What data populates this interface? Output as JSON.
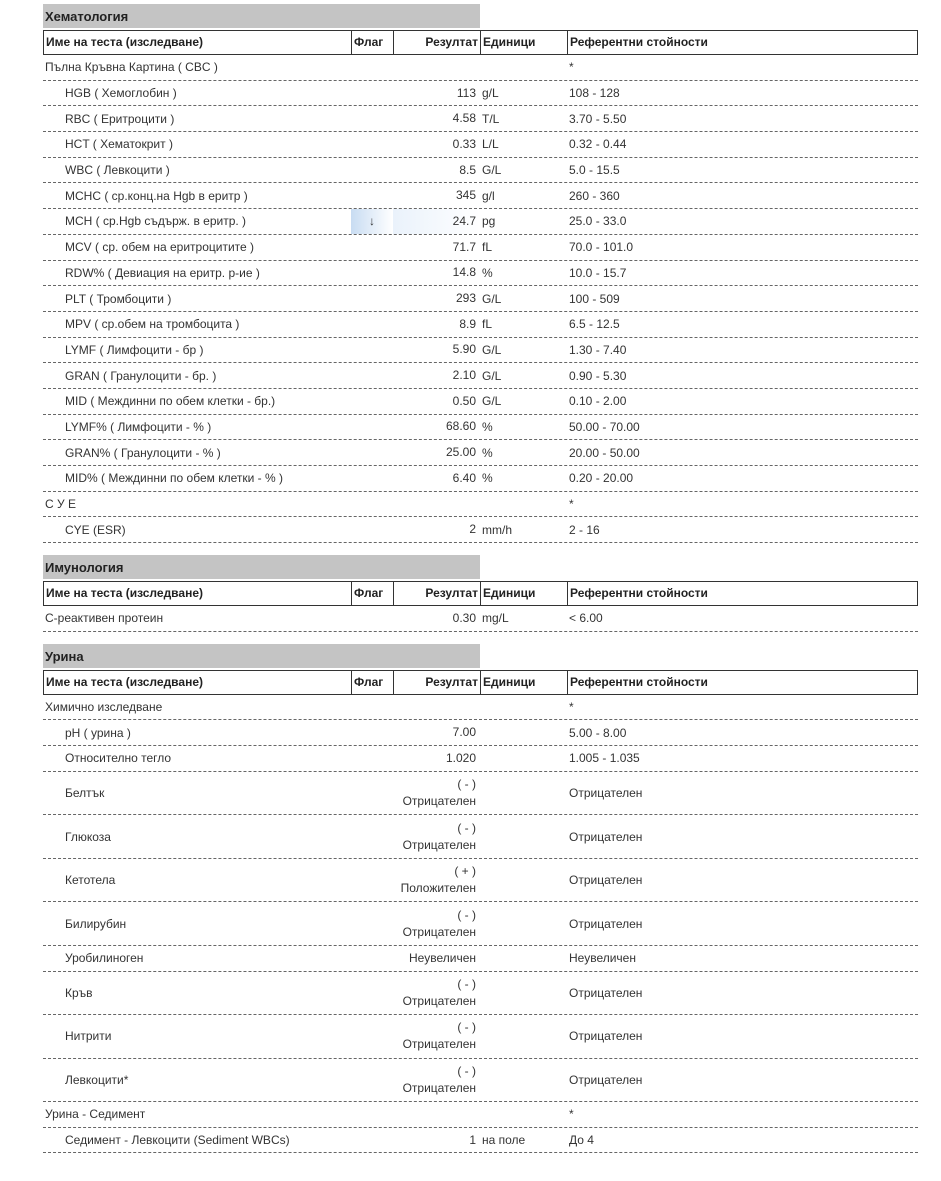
{
  "columns": {
    "name": "Име на теста (изследване)",
    "flag": "Флаг",
    "result": "Резултат",
    "units": "Единици",
    "ref": "Референтни стойности"
  },
  "colors": {
    "section_bg": "#c4c4c4",
    "flag_highlight": "#c8dcf2"
  },
  "sections": [
    {
      "title": "Хематология",
      "rows": [
        {
          "name": "Пълна Кръвна Картина ( CBC )",
          "ref": "*",
          "group": true
        },
        {
          "name": "HGB ( Хемоглобин )",
          "result": "113",
          "units": "g/L",
          "ref": "108 - 128"
        },
        {
          "name": "RBC ( Еритроцити )",
          "result": "4.58",
          "units": "T/L",
          "ref": "3.70 - 5.50"
        },
        {
          "name": "HCT ( Хематокрит )",
          "result": "0.33",
          "units": "L/L",
          "ref": "0.32 - 0.44"
        },
        {
          "name": "WBC ( Левкоцити )",
          "result": "8.5",
          "units": "G/L",
          "ref": "5.0 - 15.5"
        },
        {
          "name": "MCHC ( ср.конц.на Hgb в еритр )",
          "result": "345",
          "units": "g/l",
          "ref": "260 - 360"
        },
        {
          "name": "MCH ( ср.Hgb съдърж. в еритр. )",
          "flag": "↓",
          "result": "24.7",
          "units": "pg",
          "ref": "25.0 - 33.0"
        },
        {
          "name": "MCV ( ср. обем на еритроцитите )",
          "result": "71.7",
          "units": "fL",
          "ref": "70.0 - 101.0"
        },
        {
          "name": "RDW% ( Девиация на еритр. р-ие )",
          "result": "14.8",
          "units": "%",
          "ref": "10.0 - 15.7"
        },
        {
          "name": "PLT ( Тромбоцити )",
          "result": "293",
          "units": "G/L",
          "ref": "100 - 509"
        },
        {
          "name": "MPV ( ср.обем на тромбоцита )",
          "result": "8.9",
          "units": "fL",
          "ref": "6.5 - 12.5"
        },
        {
          "name": "LYMF ( Лимфоцити - бр )",
          "result": "5.90",
          "units": "G/L",
          "ref": "1.30 - 7.40"
        },
        {
          "name": "GRAN ( Гранулоцити - бр. )",
          "result": "2.10",
          "units": "G/L",
          "ref": "0.90 - 5.30"
        },
        {
          "name": "MID ( Междинни по обем клетки - бр.)",
          "result": "0.50",
          "units": "G/L",
          "ref": "0.10 - 2.00"
        },
        {
          "name": "LYMF% ( Лимфоцити - % )",
          "result": "68.60",
          "units": "%",
          "ref": "50.00 - 70.00"
        },
        {
          "name": "GRAN% ( Гранулоцити - % )",
          "result": "25.00",
          "units": "%",
          "ref": "20.00 - 50.00"
        },
        {
          "name": "MID% ( Междинни по обем клетки - % )",
          "result": "6.40",
          "units": "%",
          "ref": "0.20 - 20.00"
        },
        {
          "name": "С У Е",
          "ref": "*",
          "group": true
        },
        {
          "name": "CYE (ESR)",
          "result": "2",
          "units": "mm/h",
          "ref": "2 - 16"
        }
      ]
    },
    {
      "title": "Имунология",
      "rows": [
        {
          "name": "С-реактивен протеин",
          "result": "0.30",
          "units": "mg/L",
          "ref": "< 6.00",
          "group": true
        }
      ]
    },
    {
      "title": "Урина",
      "rows": [
        {
          "name": "Химично изследване",
          "ref": "*",
          "group": true
        },
        {
          "name": "pH ( урина )",
          "result": "7.00",
          "ref": "5.00 - 8.00"
        },
        {
          "name": "Относително тегло",
          "result": "1.020",
          "ref": "1.005 - 1.035"
        },
        {
          "name": "Белтък",
          "result": "( - )",
          "result2": "Отрицателен",
          "ref": "Отрицателен"
        },
        {
          "name": "Глюкоза",
          "result": "( - )",
          "result2": "Отрицателен",
          "ref": "Отрицателен"
        },
        {
          "name": "Кетотела",
          "result": "( + )",
          "result2": "Положителен",
          "ref": "Отрицателен"
        },
        {
          "name": "Билирубин",
          "result": "( - )",
          "result2": "Отрицателен",
          "ref": "Отрицателен"
        },
        {
          "name": "Уробилиноген",
          "result": "Неувеличен",
          "ref": "Неувеличен"
        },
        {
          "name": "Кръв",
          "result": "( - )",
          "result2": "Отрицателен",
          "ref": "Отрицателен"
        },
        {
          "name": "Нитрити",
          "result": "( - )",
          "result2": "Отрицателен",
          "ref": "Отрицателен"
        },
        {
          "name": "Левкоцити*",
          "result": "( - )",
          "result2": "Отрицателен",
          "ref": "Отрицателен"
        },
        {
          "name": "Урина - Седимент",
          "ref": "*",
          "group": true
        },
        {
          "name": "Седимент - Левкоцити (Sediment WBCs)",
          "result": "1",
          "units": "на поле",
          "ref": "До 4"
        }
      ]
    }
  ]
}
